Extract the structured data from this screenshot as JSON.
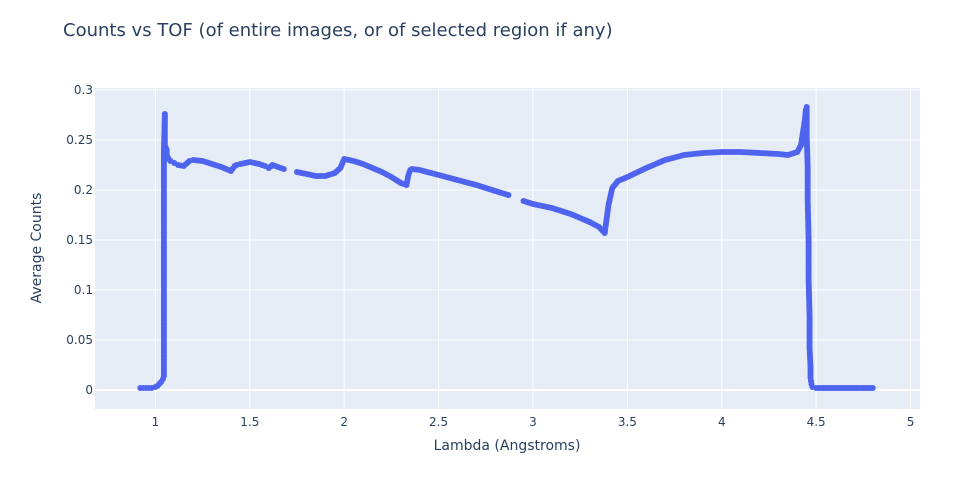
{
  "chart_data": {
    "type": "scatter",
    "title": "Counts vs TOF (of entire images, or of selected region if any)",
    "xlabel": "Lambda (Angstroms)",
    "ylabel": "Average Counts",
    "xlim": [
      0.68,
      5.05
    ],
    "ylim": [
      -0.019,
      0.302
    ],
    "x_ticks": [
      "1",
      "1.5",
      "2",
      "2.5",
      "3",
      "3.5",
      "4",
      "4.5",
      "5"
    ],
    "y_ticks": [
      "0",
      "0.05",
      "0.1",
      "0.15",
      "0.2",
      "0.25",
      "0.3"
    ],
    "grid": true,
    "legend": "none",
    "colors": {
      "marker": "#4f64ee",
      "plot_bg": "#e5ecf6",
      "grid": "#ffffff",
      "text": "#2a3f5f"
    },
    "series": [
      {
        "marker": "circle",
        "x": [
          0.92,
          0.95,
          0.98,
          1.0,
          1.01,
          1.02,
          1.03,
          1.04,
          1.045,
          1.045,
          1.045,
          1.045,
          1.045,
          1.05,
          1.05,
          1.05,
          1.05,
          1.06,
          1.06,
          1.07,
          1.08,
          1.1,
          1.12,
          1.15,
          1.18,
          1.2,
          1.25,
          1.3,
          1.35,
          1.4,
          1.42,
          1.43,
          1.45,
          1.5,
          1.55,
          1.58,
          1.6,
          1.62,
          1.65,
          1.68,
          1.75,
          1.8,
          1.85,
          1.9,
          1.95,
          1.98,
          2.0,
          2.05,
          2.1,
          2.15,
          2.2,
          2.25,
          2.3,
          2.33,
          2.34,
          2.35,
          2.36,
          2.4,
          2.5,
          2.6,
          2.7,
          2.8,
          2.87,
          2.95,
          3.0,
          3.1,
          3.2,
          3.3,
          3.35,
          3.38,
          3.4,
          3.42,
          3.45,
          3.5,
          3.6,
          3.7,
          3.8,
          3.9,
          4.0,
          4.1,
          4.2,
          4.3,
          4.35,
          4.4,
          4.42,
          4.44,
          4.445,
          4.45,
          4.45,
          4.45,
          4.455,
          4.455,
          4.46,
          4.46,
          4.465,
          4.465,
          4.47,
          4.47,
          4.475,
          4.48,
          4.5,
          4.55,
          4.6,
          4.7,
          4.8
        ],
        "y": [
          0.002,
          0.002,
          0.002,
          0.003,
          0.004,
          0.006,
          0.008,
          0.011,
          0.014,
          0.028,
          0.076,
          0.16,
          0.24,
          0.276,
          0.262,
          0.252,
          0.245,
          0.24,
          0.235,
          0.231,
          0.229,
          0.227,
          0.225,
          0.224,
          0.229,
          0.23,
          0.229,
          0.226,
          0.223,
          0.219,
          0.224,
          0.225,
          0.226,
          0.228,
          0.226,
          0.224,
          0.222,
          0.225,
          0.223,
          0.221,
          0.218,
          0.216,
          0.214,
          0.214,
          0.217,
          0.222,
          0.231,
          0.229,
          0.226,
          0.222,
          0.218,
          0.213,
          0.207,
          0.205,
          0.215,
          0.22,
          0.221,
          0.22,
          0.215,
          0.21,
          0.205,
          0.199,
          0.195,
          0.189,
          0.186,
          0.182,
          0.176,
          0.168,
          0.163,
          0.157,
          0.185,
          0.202,
          0.209,
          0.213,
          0.222,
          0.23,
          0.235,
          0.237,
          0.238,
          0.238,
          0.237,
          0.236,
          0.235,
          0.238,
          0.245,
          0.27,
          0.28,
          0.283,
          0.275,
          0.253,
          0.223,
          0.19,
          0.15,
          0.11,
          0.074,
          0.042,
          0.023,
          0.012,
          0.006,
          0.003,
          0.002,
          0.002,
          0.002,
          0.002,
          0.002
        ]
      }
    ]
  }
}
